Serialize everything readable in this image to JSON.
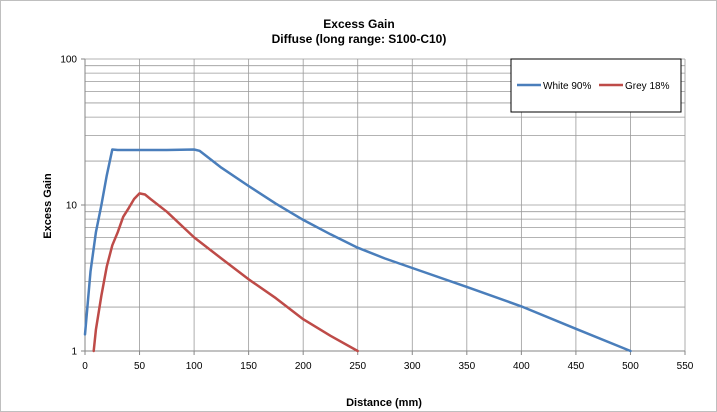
{
  "chart_data": {
    "type": "line",
    "title": "Excess Gain",
    "subtitle": "Diffuse (long range: S100-C10)",
    "xlabel": "Distance (mm)",
    "ylabel": "Excess Gain",
    "xlim": [
      0,
      550
    ],
    "ylim": [
      1,
      100
    ],
    "y_scale": "log",
    "x_ticks": [
      0,
      50,
      100,
      150,
      200,
      250,
      300,
      350,
      400,
      450,
      500,
      550
    ],
    "y_ticks": [
      1,
      10,
      100
    ],
    "grid": true,
    "legend_position": "top-right",
    "series": [
      {
        "name": "White 90%",
        "color": "#4a7ebb",
        "points": [
          [
            0,
            1.3
          ],
          [
            5,
            3.5
          ],
          [
            10,
            6.5
          ],
          [
            15,
            10
          ],
          [
            20,
            16
          ],
          [
            25,
            24
          ],
          [
            30,
            23.8
          ],
          [
            50,
            23.8
          ],
          [
            75,
            23.8
          ],
          [
            100,
            24
          ],
          [
            105,
            23.5
          ],
          [
            110,
            22
          ],
          [
            125,
            18
          ],
          [
            150,
            13.5
          ],
          [
            175,
            10.2
          ],
          [
            200,
            7.9
          ],
          [
            225,
            6.3
          ],
          [
            250,
            5.1
          ],
          [
            275,
            4.3
          ],
          [
            300,
            3.7
          ],
          [
            350,
            2.75
          ],
          [
            400,
            2.02
          ],
          [
            450,
            1.42
          ],
          [
            500,
            1.0
          ]
        ]
      },
      {
        "name": "Grey 18%",
        "color": "#be4b48",
        "points": [
          [
            8,
            1.0
          ],
          [
            10,
            1.4
          ],
          [
            15,
            2.4
          ],
          [
            20,
            3.8
          ],
          [
            25,
            5.3
          ],
          [
            30,
            6.5
          ],
          [
            35,
            8.3
          ],
          [
            40,
            9.5
          ],
          [
            45,
            11
          ],
          [
            50,
            12
          ],
          [
            55,
            11.8
          ],
          [
            60,
            11
          ],
          [
            75,
            9
          ],
          [
            100,
            6
          ],
          [
            125,
            4.3
          ],
          [
            150,
            3.1
          ],
          [
            175,
            2.3
          ],
          [
            200,
            1.65
          ],
          [
            225,
            1.27
          ],
          [
            250,
            1.0
          ]
        ]
      }
    ]
  }
}
